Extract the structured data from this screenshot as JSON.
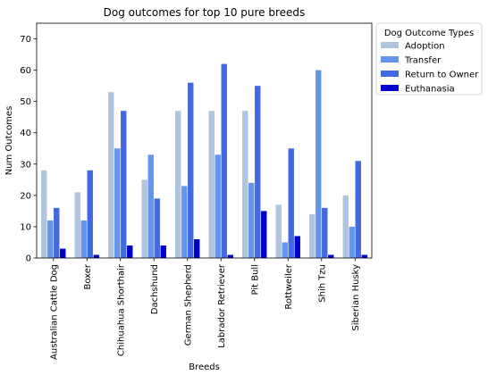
{
  "chart_data": {
    "type": "bar",
    "title": "Dog outcomes for top 10 pure breeds",
    "xlabel": "Breeds",
    "ylabel": "Num Outcomes",
    "ylim": [
      0,
      75
    ],
    "yticks": [
      0,
      10,
      20,
      30,
      40,
      50,
      60,
      70
    ],
    "grid": false,
    "legend": {
      "title": "Dog Outcome Types",
      "placement": "outside right, top"
    },
    "categories": [
      "Australian Cattle Dog",
      "Boxer",
      "Chihuahua Shorthair",
      "Dachshund",
      "German Shepherd",
      "Labrador Retriever",
      "Pit Bull",
      "Rottweiler",
      "Shih Tzu",
      "Siberian Husky"
    ],
    "series": [
      {
        "name": "Adoption",
        "color": "#b0c4de",
        "values": [
          28,
          21,
          53,
          25,
          47,
          47,
          47,
          17,
          14,
          20
        ]
      },
      {
        "name": "Transfer",
        "color": "#6495ed",
        "values": [
          12,
          12,
          35,
          33,
          23,
          33,
          24,
          5,
          60,
          10
        ]
      },
      {
        "name": "Return to Owner",
        "color": "#4169e1",
        "values": [
          16,
          28,
          47,
          19,
          56,
          62,
          55,
          35,
          16,
          31
        ]
      },
      {
        "name": "Euthanasia",
        "color": "#0000cd",
        "values": [
          3,
          1,
          4,
          4,
          6,
          1,
          15,
          7,
          1,
          1
        ]
      }
    ]
  }
}
